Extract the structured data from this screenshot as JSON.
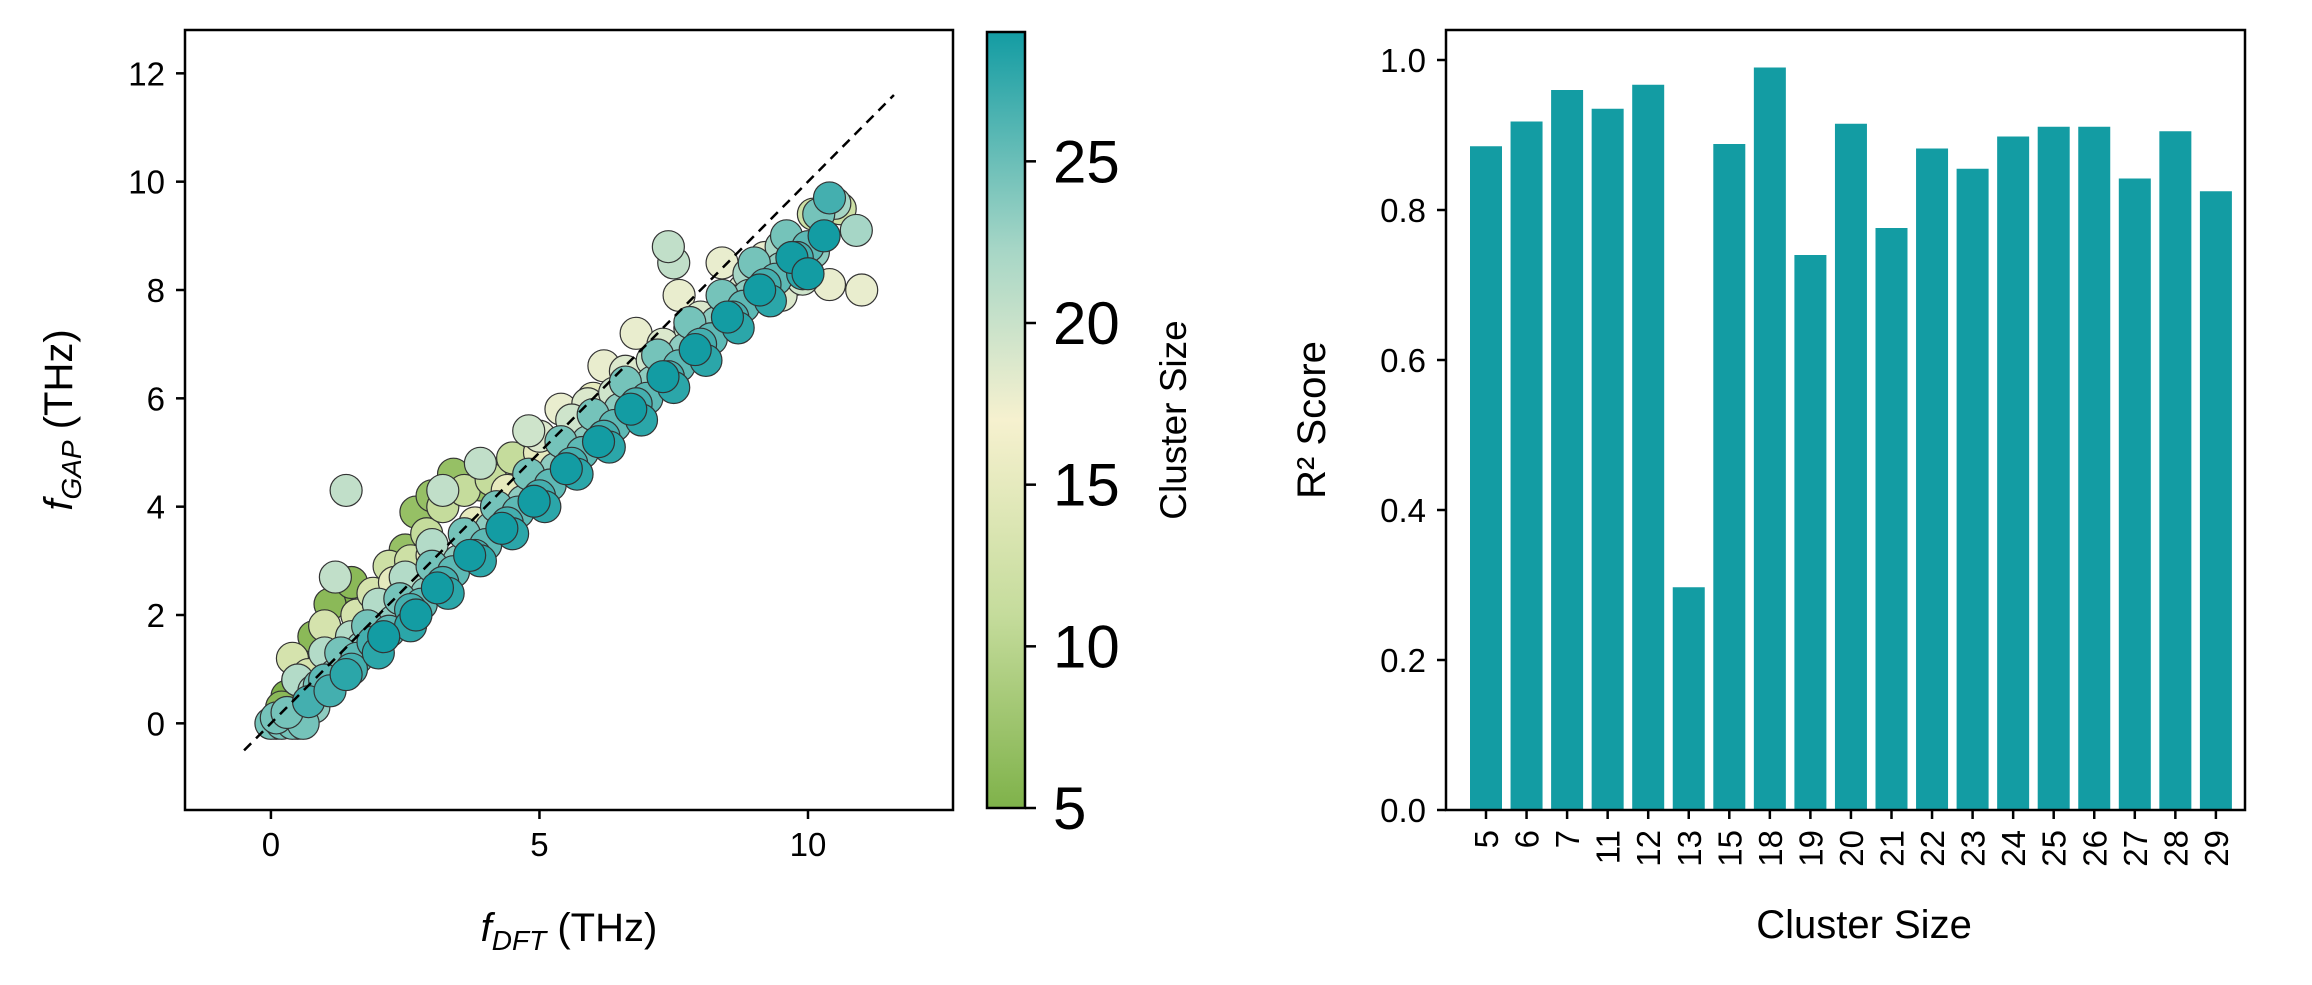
{
  "colors": {
    "teal": "#139ca3",
    "cmap": [
      "#7fb24a",
      "#c5dc9c",
      "#f6f1cf",
      "#a6d6c6",
      "#139ca3"
    ]
  },
  "chart_data": [
    {
      "type": "scatter",
      "xlabel": {
        "base": "f",
        "sub": "DFT",
        "unit": " (THz)"
      },
      "ylabel": {
        "base": "f",
        "sub": "GAP",
        "unit": " (THz)"
      },
      "xlim": [
        -1.6,
        12.7
      ],
      "ylim": [
        -1.6,
        12.8
      ],
      "xticks": [
        "0",
        "5",
        "10"
      ],
      "yticks": [
        "0",
        "2",
        "4",
        "6",
        "8",
        "10",
        "12"
      ],
      "reference_line": {
        "style": "dashed",
        "from": [
          -0.5,
          -0.5
        ],
        "to": [
          11.6,
          11.6
        ]
      },
      "colorbar": {
        "label": "Cluster Size",
        "range": [
          5,
          29
        ],
        "ticks": [
          "5",
          "10",
          "15",
          "20",
          "25"
        ]
      },
      "series": [
        {
          "name": "size 5",
          "size": 5,
          "points": [
            [
              0.1,
              0.0
            ],
            [
              0.3,
              0.5
            ],
            [
              0.6,
              1.1
            ],
            [
              0.9,
              1.4
            ],
            [
              1.3,
              2.5
            ]
          ]
        },
        {
          "name": "size 6",
          "size": 6,
          "points": [
            [
              0.2,
              0.3
            ],
            [
              0.5,
              0.8
            ],
            [
              0.8,
              1.6
            ],
            [
              1.1,
              2.2
            ],
            [
              1.5,
              2.6
            ]
          ]
        },
        {
          "name": "size 7",
          "size": 7,
          "points": [
            [
              2.5,
              3.2
            ],
            [
              2.7,
              3.9
            ],
            [
              3.0,
              4.2
            ],
            [
              3.4,
              4.6
            ],
            [
              3.9,
              4.4
            ]
          ]
        },
        {
          "name": "size 11",
          "size": 11,
          "points": [
            [
              2.9,
              3.5
            ],
            [
              3.2,
              4.0
            ],
            [
              3.6,
              4.3
            ],
            [
              4.1,
              4.5
            ],
            [
              4.5,
              4.9
            ]
          ]
        },
        {
          "name": "size 12",
          "size": 12,
          "points": [
            [
              2.0,
              2.3
            ],
            [
              2.2,
              2.9
            ],
            [
              2.6,
              3.0
            ],
            [
              10.1,
              9.4
            ],
            [
              10.6,
              9.5
            ]
          ]
        },
        {
          "name": "size 13",
          "size": 13,
          "points": [
            [
              0.4,
              1.2
            ],
            [
              0.7,
              0.9
            ],
            [
              1.0,
              1.8
            ],
            [
              1.6,
              2.0
            ],
            [
              1.9,
              2.4
            ]
          ]
        },
        {
          "name": "size 15",
          "size": 15,
          "points": [
            [
              2.3,
              2.6
            ],
            [
              3.0,
              3.1
            ],
            [
              3.8,
              3.7
            ],
            [
              4.4,
              4.3
            ],
            [
              5.0,
              5.0
            ],
            [
              6.0,
              6.0
            ]
          ]
        },
        {
          "name": "size 18",
          "size": 18,
          "points": [
            [
              5.4,
              5.8
            ],
            [
              6.2,
              6.6
            ],
            [
              6.8,
              7.2
            ],
            [
              7.6,
              7.9
            ],
            [
              8.4,
              8.5
            ],
            [
              9.2,
              8.6
            ],
            [
              9.8,
              8.2
            ],
            [
              10.4,
              8.1
            ],
            [
              11.0,
              8.0
            ]
          ]
        },
        {
          "name": "size 19",
          "size": 19,
          "points": [
            [
              5.0,
              5.3
            ],
            [
              5.9,
              5.9
            ],
            [
              6.6,
              6.5
            ],
            [
              7.3,
              7.0
            ],
            [
              8.0,
              7.5
            ],
            [
              8.8,
              8.0
            ],
            [
              9.5,
              7.9
            ]
          ]
        },
        {
          "name": "size 20",
          "size": 20,
          "points": [
            [
              4.8,
              5.4
            ],
            [
              5.6,
              5.6
            ],
            [
              6.4,
              6.1
            ],
            [
              7.1,
              6.7
            ],
            [
              7.8,
              7.3
            ],
            [
              8.6,
              7.8
            ],
            [
              9.9,
              8.2
            ]
          ]
        },
        {
          "name": "size 21",
          "size": 21,
          "points": [
            [
              1.2,
              2.7
            ],
            [
              1.4,
              4.3
            ],
            [
              3.2,
              4.3
            ],
            [
              3.9,
              4.8
            ],
            [
              7.5,
              8.5
            ],
            [
              7.4,
              8.8
            ]
          ]
        },
        {
          "name": "size 22",
          "size": 22,
          "points": [
            [
              0.5,
              0.8
            ],
            [
              1.0,
              1.3
            ],
            [
              1.5,
              1.6
            ],
            [
              2.0,
              2.2
            ],
            [
              2.5,
              2.7
            ],
            [
              3.0,
              3.3
            ]
          ]
        },
        {
          "name": "size 23",
          "size": 23,
          "points": [
            [
              10.5,
              9.6
            ],
            [
              10.9,
              9.1
            ],
            [
              9.5,
              8.8
            ],
            [
              8.9,
              8.3
            ],
            [
              0.8,
              0.6
            ],
            [
              1.4,
              1.1
            ]
          ]
        },
        {
          "name": "size 24",
          "size": 24,
          "points": [
            [
              0.5,
              0.0
            ],
            [
              0.8,
              0.3
            ],
            [
              1.2,
              0.9
            ],
            [
              1.7,
              1.4
            ],
            [
              2.3,
              1.9
            ],
            [
              2.9,
              2.4
            ],
            [
              3.5,
              3.0
            ],
            [
              4.1,
              3.6
            ],
            [
              4.7,
              4.1
            ],
            [
              5.3,
              4.7
            ],
            [
              5.9,
              5.2
            ],
            [
              6.5,
              5.8
            ],
            [
              7.1,
              6.3
            ],
            [
              7.7,
              6.9
            ],
            [
              8.3,
              7.4
            ],
            [
              8.9,
              7.9
            ],
            [
              9.5,
              8.4
            ],
            [
              10.1,
              8.7
            ]
          ]
        },
        {
          "name": "size 25",
          "size": 25,
          "points": [
            [
              0.0,
              0.0
            ],
            [
              0.2,
              0.0
            ],
            [
              0.4,
              0.0
            ],
            [
              0.6,
              0.0
            ],
            [
              0.1,
              0.1
            ],
            [
              0.3,
              0.2
            ],
            [
              0.9,
              0.7
            ],
            [
              1.3,
              1.3
            ],
            [
              1.8,
              1.8
            ],
            [
              2.4,
              2.3
            ],
            [
              3.0,
              2.9
            ],
            [
              3.6,
              3.5
            ],
            [
              4.2,
              4.0
            ],
            [
              4.8,
              4.6
            ],
            [
              5.4,
              5.2
            ],
            [
              6.0,
              5.7
            ],
            [
              6.6,
              6.3
            ],
            [
              7.2,
              6.8
            ],
            [
              7.8,
              7.4
            ],
            [
              8.4,
              7.9
            ],
            [
              9.0,
              8.5
            ],
            [
              9.6,
              9.0
            ],
            [
              10.2,
              9.4
            ]
          ]
        },
        {
          "name": "size 26",
          "size": 26,
          "points": [
            [
              1.0,
              0.8
            ],
            [
              1.6,
              1.2
            ],
            [
              2.2,
              1.7
            ],
            [
              2.8,
              2.2
            ],
            [
              3.4,
              2.8
            ],
            [
              4.0,
              3.3
            ],
            [
              4.6,
              3.9
            ],
            [
              5.2,
              4.4
            ],
            [
              5.8,
              5.0
            ],
            [
              6.4,
              5.5
            ],
            [
              7.0,
              6.0
            ],
            [
              7.6,
              6.6
            ],
            [
              8.2,
              7.1
            ],
            [
              8.8,
              7.7
            ],
            [
              9.4,
              8.2
            ],
            [
              10.0,
              8.8
            ]
          ]
        },
        {
          "name": "size 27",
          "size": 27,
          "points": [
            [
              0.7,
              0.4
            ],
            [
              1.1,
              0.6
            ],
            [
              1.5,
              1.0
            ],
            [
              1.9,
              1.5
            ],
            [
              2.6,
              2.1
            ],
            [
              3.2,
              2.6
            ],
            [
              3.8,
              3.1
            ],
            [
              4.4,
              3.7
            ],
            [
              5.0,
              4.2
            ],
            [
              5.6,
              4.8
            ],
            [
              6.2,
              5.3
            ],
            [
              6.8,
              5.9
            ],
            [
              7.4,
              6.4
            ],
            [
              8.0,
              7.0
            ],
            [
              8.6,
              7.5
            ],
            [
              9.2,
              8.1
            ],
            [
              9.8,
              8.6
            ],
            [
              10.4,
              9.7
            ]
          ]
        },
        {
          "name": "size 28",
          "size": 28,
          "points": [
            [
              1.4,
              0.9
            ],
            [
              2.0,
              1.3
            ],
            [
              2.6,
              1.8
            ],
            [
              3.3,
              2.4
            ],
            [
              3.9,
              3.0
            ],
            [
              4.5,
              3.5
            ],
            [
              5.1,
              4.0
            ],
            [
              5.7,
              4.6
            ],
            [
              6.3,
              5.1
            ],
            [
              6.9,
              5.6
            ],
            [
              7.5,
              6.2
            ],
            [
              8.1,
              6.7
            ],
            [
              8.7,
              7.3
            ],
            [
              9.3,
              7.8
            ],
            [
              9.9,
              8.3
            ]
          ]
        },
        {
          "name": "size 29",
          "size": 29,
          "points": [
            [
              2.1,
              1.6
            ],
            [
              2.7,
              2.0
            ],
            [
              3.1,
              2.5
            ],
            [
              3.7,
              3.1
            ],
            [
              4.3,
              3.6
            ],
            [
              4.9,
              4.1
            ],
            [
              5.5,
              4.7
            ],
            [
              6.1,
              5.2
            ],
            [
              6.7,
              5.8
            ],
            [
              7.3,
              6.4
            ],
            [
              7.9,
              6.9
            ],
            [
              8.5,
              7.5
            ],
            [
              9.1,
              8.0
            ],
            [
              9.7,
              8.6
            ],
            [
              10.3,
              9.0
            ],
            [
              10.0,
              8.3
            ]
          ]
        }
      ]
    },
    {
      "type": "bar",
      "categories": [
        "5",
        "6",
        "7",
        "11",
        "12",
        "13",
        "15",
        "18",
        "19",
        "20",
        "21",
        "22",
        "23",
        "24",
        "25",
        "26",
        "27",
        "28",
        "29"
      ],
      "values": [
        0.885,
        0.918,
        0.96,
        0.935,
        0.967,
        0.297,
        0.888,
        0.99,
        0.74,
        0.915,
        0.776,
        0.882,
        0.855,
        0.898,
        0.911,
        0.911,
        0.842,
        0.905,
        0.825
      ],
      "xlabel": "Cluster Size",
      "ylabel": "R² Score",
      "ylim": [
        0,
        1.04
      ],
      "yticks": [
        "0.0",
        "0.2",
        "0.4",
        "0.6",
        "0.8",
        "1.0"
      ]
    }
  ]
}
